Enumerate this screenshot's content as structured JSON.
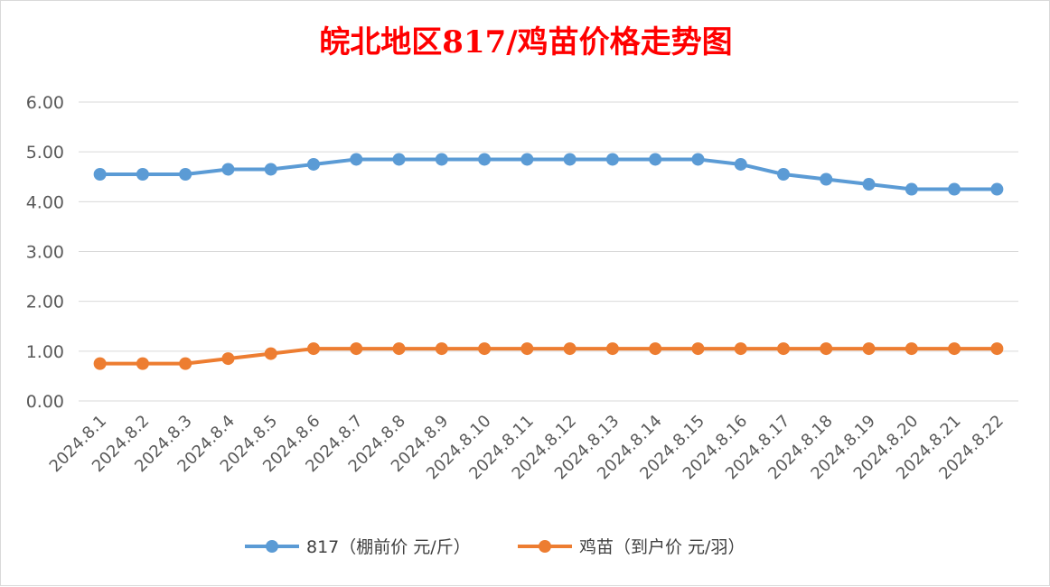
{
  "chart_data": {
    "type": "line",
    "title": "皖北地区817/鸡苗价格走势图",
    "title_color": "#ff0000",
    "xlabel": "",
    "ylabel": "",
    "ylim": [
      0,
      6
    ],
    "y_ticks": [
      "0.00",
      "1.00",
      "2.00",
      "3.00",
      "4.00",
      "5.00",
      "6.00"
    ],
    "grid": true,
    "legend": "bottom",
    "categories": [
      "2024.8.1",
      "2024.8.2",
      "2024.8.3",
      "2024.8.4",
      "2024.8.5",
      "2024.8.6",
      "2024.8.7",
      "2024.8.8",
      "2024.8.9",
      "2024.8.10",
      "2024.8.11",
      "2024.8.12",
      "2024.8.13",
      "2024.8.14",
      "2024.8.15",
      "2024.8.16",
      "2024.8.17",
      "2024.8.18",
      "2024.8.19",
      "2024.8.20",
      "2024.8.21",
      "2024.8.22"
    ],
    "series": [
      {
        "name": "817（棚前价 元/斤）",
        "color": "#5b9bd5",
        "values": [
          4.55,
          4.55,
          4.55,
          4.65,
          4.65,
          4.75,
          4.85,
          4.85,
          4.85,
          4.85,
          4.85,
          4.85,
          4.85,
          4.85,
          4.85,
          4.75,
          4.55,
          4.45,
          4.35,
          4.25,
          4.25,
          4.25
        ]
      },
      {
        "name": "鸡苗（到户价 元/羽）",
        "color": "#ed7d31",
        "values": [
          0.75,
          0.75,
          0.75,
          0.85,
          0.95,
          1.05,
          1.05,
          1.05,
          1.05,
          1.05,
          1.05,
          1.05,
          1.05,
          1.05,
          1.05,
          1.05,
          1.05,
          1.05,
          1.05,
          1.05,
          1.05,
          1.05
        ]
      }
    ]
  }
}
